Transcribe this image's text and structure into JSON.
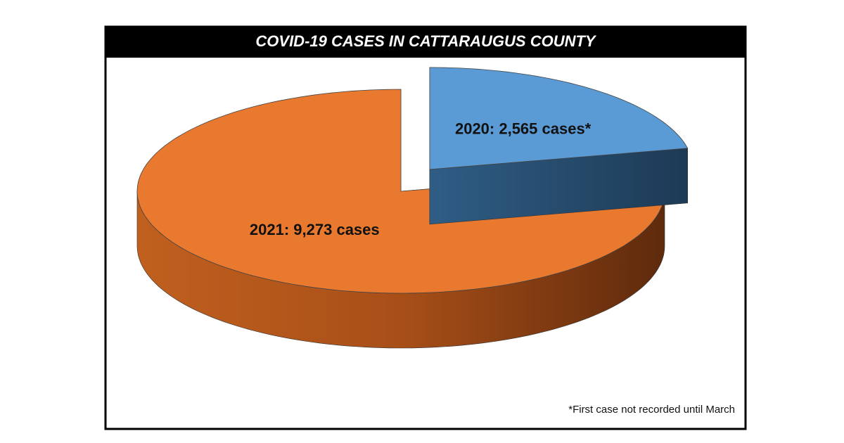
{
  "chart_data": {
    "type": "pie",
    "title": "COVID-19 CASES IN CATTARAUGUS COUNTY",
    "categories": [
      "2020",
      "2021"
    ],
    "values": [
      2565,
      9273
    ],
    "value_labels": [
      "2020: 2,565 cases*",
      "2021: 9,273 cases"
    ],
    "colors": [
      "#5b9bd5",
      "#e8792f"
    ],
    "note": "*First case not recorded until March"
  }
}
